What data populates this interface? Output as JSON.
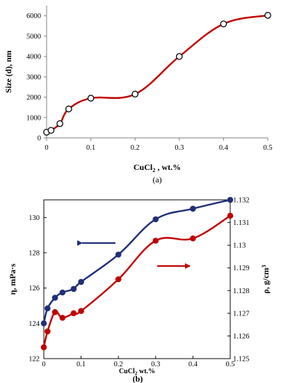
{
  "chart_data": [
    {
      "type": "line",
      "panel_label": "(a)",
      "xlabel": "CuCl2 , wt.%",
      "xlabel_main": "CuCl",
      "xlabel_sub": "2",
      "xlabel_tail": " , wt.%",
      "ylabel": "Size (d),  nm",
      "xlim": [
        0,
        0.5
      ],
      "ylim": [
        0,
        6500
      ],
      "x_ticks": [
        "0",
        "0.1",
        "0.2",
        "0.3",
        "0.4",
        "0.5"
      ],
      "x_tick_values": [
        0,
        0.1,
        0.2,
        0.3,
        0.4,
        0.5
      ],
      "y_ticks": [
        "0",
        "1000",
        "2000",
        "3000",
        "4000",
        "5000",
        "6000"
      ],
      "y_tick_values": [
        0,
        1000,
        2000,
        3000,
        4000,
        5000,
        6000
      ],
      "grid": false,
      "line_color": "#c00000",
      "marker_fill": "#ffffff",
      "series": [
        {
          "x": [
            0,
            0.01,
            0.03,
            0.05,
            0.1,
            0.2,
            0.3,
            0.4,
            0.5
          ],
          "values": [
            280,
            370,
            700,
            1420,
            1950,
            2150,
            4000,
            5600,
            6020
          ]
        }
      ]
    },
    {
      "type": "line",
      "panel_label": "(b)",
      "xlabel": "CuCl2 wt.%",
      "xlabel_main": "CuCl",
      "xlabel_sub": "2",
      "xlabel_tail": " wt.%",
      "ylabel_left": "η, mPa·s",
      "ylabel_right": "ρ, g/cm3",
      "ylabel_right_main": "ρ, g/cm",
      "ylabel_right_sup": "3",
      "xlim": [
        0,
        0.5
      ],
      "ylim_left": [
        122,
        131
      ],
      "ylim_right": [
        1.125,
        1.132
      ],
      "x_ticks": [
        "0",
        "0.1",
        "0.2",
        "0.3",
        "0.4",
        "0.5"
      ],
      "x_tick_values": [
        0,
        0.1,
        0.2,
        0.3,
        0.4,
        0.5
      ],
      "y_ticks_left": [
        "122",
        "124",
        "126",
        "128",
        "130"
      ],
      "y_tick_values_left": [
        122,
        124,
        126,
        128,
        130
      ],
      "y_ticks_right": [
        "1.125",
        "1.126",
        "1.127",
        "1.128",
        "1.129",
        "1.13",
        "1.131",
        "1.132"
      ],
      "y_tick_values_right": [
        1.125,
        1.126,
        1.127,
        1.128,
        1.129,
        1.13,
        1.131,
        1.132
      ],
      "grid": false,
      "series": [
        {
          "axis": "left",
          "color": "#1f2f7a",
          "x": [
            0,
            0.01,
            0.03,
            0.05,
            0.08,
            0.1,
            0.2,
            0.3,
            0.4,
            0.5
          ],
          "values": [
            124.0,
            124.85,
            125.45,
            125.75,
            125.95,
            126.35,
            127.9,
            129.9,
            130.5,
            131.0
          ]
        },
        {
          "axis": "right",
          "color": "#c00000",
          "x": [
            0,
            0.01,
            0.03,
            0.05,
            0.08,
            0.1,
            0.2,
            0.3,
            0.4,
            0.5
          ],
          "values": [
            1.1255,
            1.1262,
            1.12705,
            1.1268,
            1.127,
            1.1271,
            1.1285,
            1.1302,
            1.1303,
            1.1313
          ]
        }
      ],
      "arrows": [
        {
          "series_axis": "left",
          "direction": "left",
          "color": "#1f2f7a"
        },
        {
          "series_axis": "right",
          "direction": "right",
          "color": "#c00000"
        }
      ]
    }
  ]
}
